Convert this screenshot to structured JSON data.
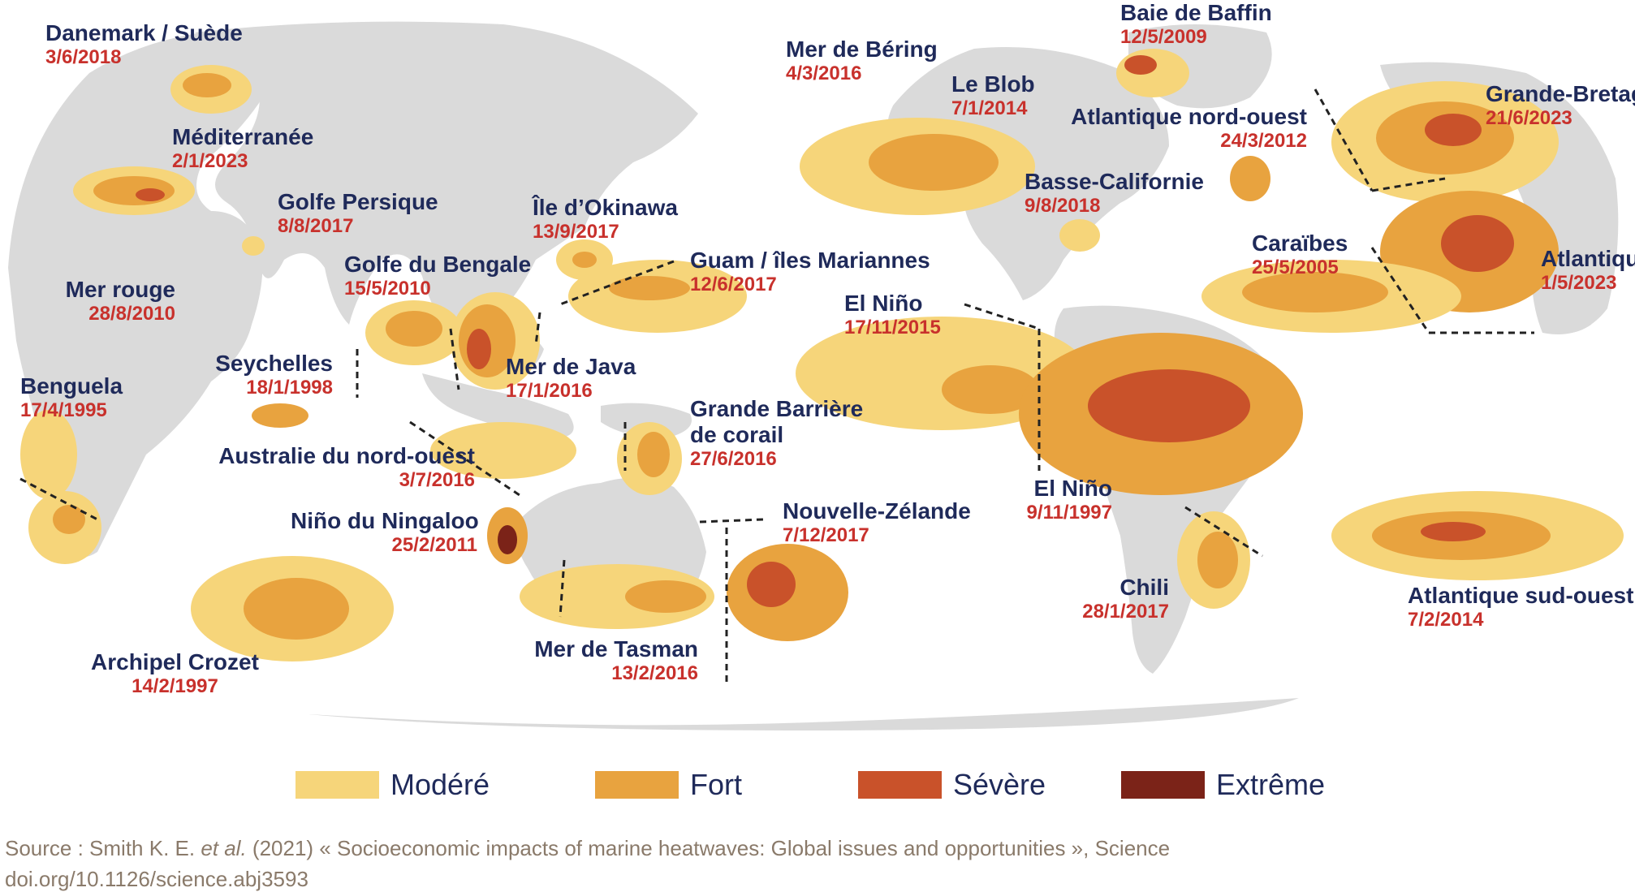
{
  "colors": {
    "land": "#dadada",
    "moderate": "#f6d57a",
    "strong": "#e8a33f",
    "severe": "#c9522a",
    "extreme": "#7b2318",
    "name": "#1f2a5a",
    "date": "#c8312c"
  },
  "events": [
    {
      "name": "Danemark / Suède",
      "date": "3/6/2018"
    },
    {
      "name": "Méditerranée",
      "date": "2/1/2023"
    },
    {
      "name": "Golfe Persique",
      "date": "8/8/2017"
    },
    {
      "name": "Mer rouge",
      "date": "28/8/2010"
    },
    {
      "name": "Golfe du Bengale",
      "date": "15/5/2010"
    },
    {
      "name": "Île d’Okinawa",
      "date": "13/9/2017"
    },
    {
      "name": "Seychelles",
      "date": "18/1/1998"
    },
    {
      "name": "Benguela",
      "date": "17/4/1995"
    },
    {
      "name": "Mer de Java",
      "date": "17/1/2016"
    },
    {
      "name": "Guam / îles Mariannes",
      "date": "12/6/2017"
    },
    {
      "name": "Australie du nord-ouest",
      "date": "3/7/2016"
    },
    {
      "name": "Grande Barrière de corail",
      "date": "27/6/2016"
    },
    {
      "name": "Niño du Ningaloo",
      "date": "25/2/2011"
    },
    {
      "name": "Archipel Crozet",
      "date": "14/2/1997"
    },
    {
      "name": "Mer de Tasman",
      "date": "13/2/2016"
    },
    {
      "name": "Nouvelle-Zélande",
      "date": "7/12/2017"
    },
    {
      "name": "Mer de Béring",
      "date": "4/3/2016"
    },
    {
      "name": "Le Blob",
      "date": "7/1/2014"
    },
    {
      "name": "Baie de Baffin",
      "date": "12/5/2009"
    },
    {
      "name": "Atlantique nord-ouest",
      "date": "24/3/2012"
    },
    {
      "name": "Basse-Californie",
      "date": "9/8/2018"
    },
    {
      "name": "El Niño",
      "date": "17/11/2015"
    },
    {
      "name": "Caraïbes",
      "date": "25/5/2005"
    },
    {
      "name": "El Niño",
      "date": "9/11/1997"
    },
    {
      "name": "Chili",
      "date": "28/1/2017"
    },
    {
      "name": "Grande-Bretagne",
      "date": "21/6/2023"
    },
    {
      "name": "Atlantique",
      "date": "1/5/2023"
    },
    {
      "name": "Atlantique sud-ouest",
      "date": "7/2/2014"
    }
  ],
  "legend": [
    {
      "label": "Modéré",
      "color": "#f6d57a"
    },
    {
      "label": "Fort",
      "color": "#e8a33f"
    },
    {
      "label": "Sévère",
      "color": "#c9522a"
    },
    {
      "label": "Extrême",
      "color": "#7b2318"
    }
  ],
  "source": {
    "prefix": "Source : Smith K. E. ",
    "etal": "et al.",
    "rest": " (2021) « Socioeconomic impacts of marine heatwaves: Global issues and opportunities », Science",
    "doi": "doi.org/10.1126/science.abj3593"
  }
}
